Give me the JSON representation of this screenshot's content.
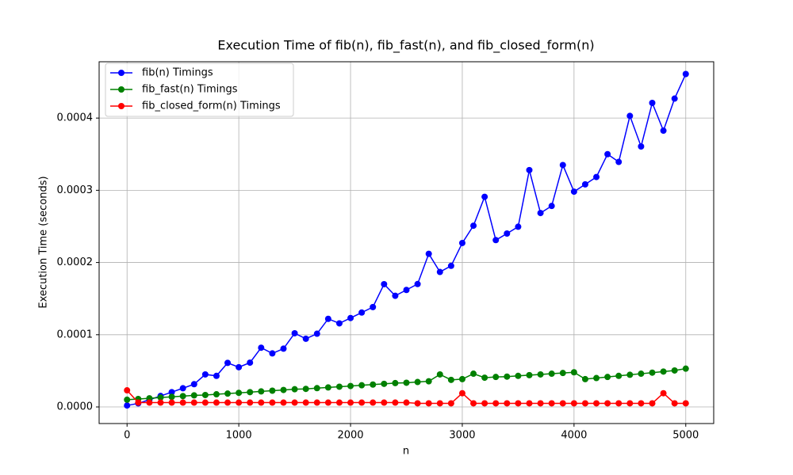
{
  "chart_data": {
    "type": "line",
    "title": "Execution Time of fib(n), fib_fast(n), and fib_closed_form(n)",
    "xlabel": "n",
    "ylabel": "Execution Time (seconds)",
    "x": [
      0,
      100,
      200,
      300,
      400,
      500,
      600,
      700,
      800,
      900,
      1000,
      1100,
      1200,
      1300,
      1400,
      1500,
      1600,
      1700,
      1800,
      1900,
      2000,
      2100,
      2200,
      2300,
      2400,
      2500,
      2600,
      2700,
      2800,
      2900,
      3000,
      3100,
      3200,
      3300,
      3400,
      3500,
      3600,
      3700,
      3800,
      3900,
      4000,
      4100,
      4200,
      4300,
      4400,
      4500,
      4600,
      4700,
      4800,
      4900,
      5000
    ],
    "series": [
      {
        "name": "fib(n) Timings",
        "color": "#0000ff",
        "values": [
          2e-06,
          4.9e-06,
          1e-05,
          1.52e-05,
          2.05e-05,
          2.59e-05,
          3.15e-05,
          4.5e-05,
          4.3e-05,
          6.1e-05,
          5.5e-05,
          6.13e-05,
          8.2e-05,
          7.41e-05,
          8.07e-05,
          0.000102,
          9.44e-05,
          0.0001014,
          0.000122,
          0.0001157,
          0.0001231,
          0.0001307,
          0.0001383,
          0.00017,
          0.0001539,
          0.000162,
          0.0001702,
          0.000212,
          0.0001869,
          0.0001954,
          0.000227,
          0.000251,
          0.000291,
          0.000231,
          0.0002401,
          0.0002495,
          0.000328,
          0.0002685,
          0.0002783,
          0.000335,
          0.0002981,
          0.0003082,
          0.0003184,
          0.00035,
          0.0003393,
          0.000403,
          0.0003607,
          0.000421,
          0.0003826,
          0.000427,
          0.000461
        ]
      },
      {
        "name": "fib_fast(n) Timings",
        "color": "#008000",
        "values": [
          1e-05,
          1.1e-05,
          1.2e-05,
          1.3e-05,
          1.4e-05,
          1.5e-05,
          1.6e-05,
          1.65e-05,
          1.75e-05,
          1.85e-05,
          1.95e-05,
          2.05e-05,
          2.15e-05,
          2.25e-05,
          2.35e-05,
          2.45e-05,
          2.5e-05,
          2.6e-05,
          2.7e-05,
          2.8e-05,
          2.9e-05,
          3e-05,
          3.1e-05,
          3.2e-05,
          3.3e-05,
          3.35e-05,
          3.45e-05,
          3.55e-05,
          4.5e-05,
          3.75e-05,
          3.85e-05,
          4.6e-05,
          4.05e-05,
          4.15e-05,
          4.2e-05,
          4.3e-05,
          4.4e-05,
          4.5e-05,
          4.6e-05,
          4.7e-05,
          4.8e-05,
          3.85e-05,
          4e-05,
          4.15e-05,
          4.3e-05,
          4.45e-05,
          4.6e-05,
          4.75e-05,
          4.9e-05,
          5.05e-05,
          5.3e-05
        ]
      },
      {
        "name": "fib_closed_form(n) Timings",
        "color": "#ff0000",
        "values": [
          2.3e-05,
          6e-06,
          6e-06,
          6e-06,
          6e-06,
          6e-06,
          6e-06,
          6e-06,
          6e-06,
          6e-06,
          6e-06,
          6e-06,
          6e-06,
          6e-06,
          6e-06,
          6e-06,
          6e-06,
          6e-06,
          6e-06,
          6e-06,
          6e-06,
          6e-06,
          6e-06,
          6e-06,
          6e-06,
          6e-06,
          5e-06,
          5e-06,
          5e-06,
          5e-06,
          1.9e-05,
          5e-06,
          5e-06,
          5e-06,
          5e-06,
          5e-06,
          5e-06,
          5e-06,
          5e-06,
          5e-06,
          5e-06,
          5e-06,
          5e-06,
          5e-06,
          5e-06,
          5e-06,
          5e-06,
          5e-06,
          1.9e-05,
          5e-06,
          5e-06
        ]
      }
    ],
    "xlim": [
      -250,
      5250
    ],
    "xticks": [
      0,
      1000,
      2000,
      3000,
      4000,
      5000
    ],
    "ylim": [
      -2.3e-05,
      0.000478
    ],
    "yticks": [
      {
        "value": 0,
        "label": "0.0000"
      },
      {
        "value": 0.0001,
        "label": "0.0001"
      },
      {
        "value": 0.0002,
        "label": "0.0002"
      },
      {
        "value": 0.0003,
        "label": "0.0003"
      },
      {
        "value": 0.0004,
        "label": "0.0004"
      }
    ],
    "grid": true,
    "legend": "upper left"
  }
}
